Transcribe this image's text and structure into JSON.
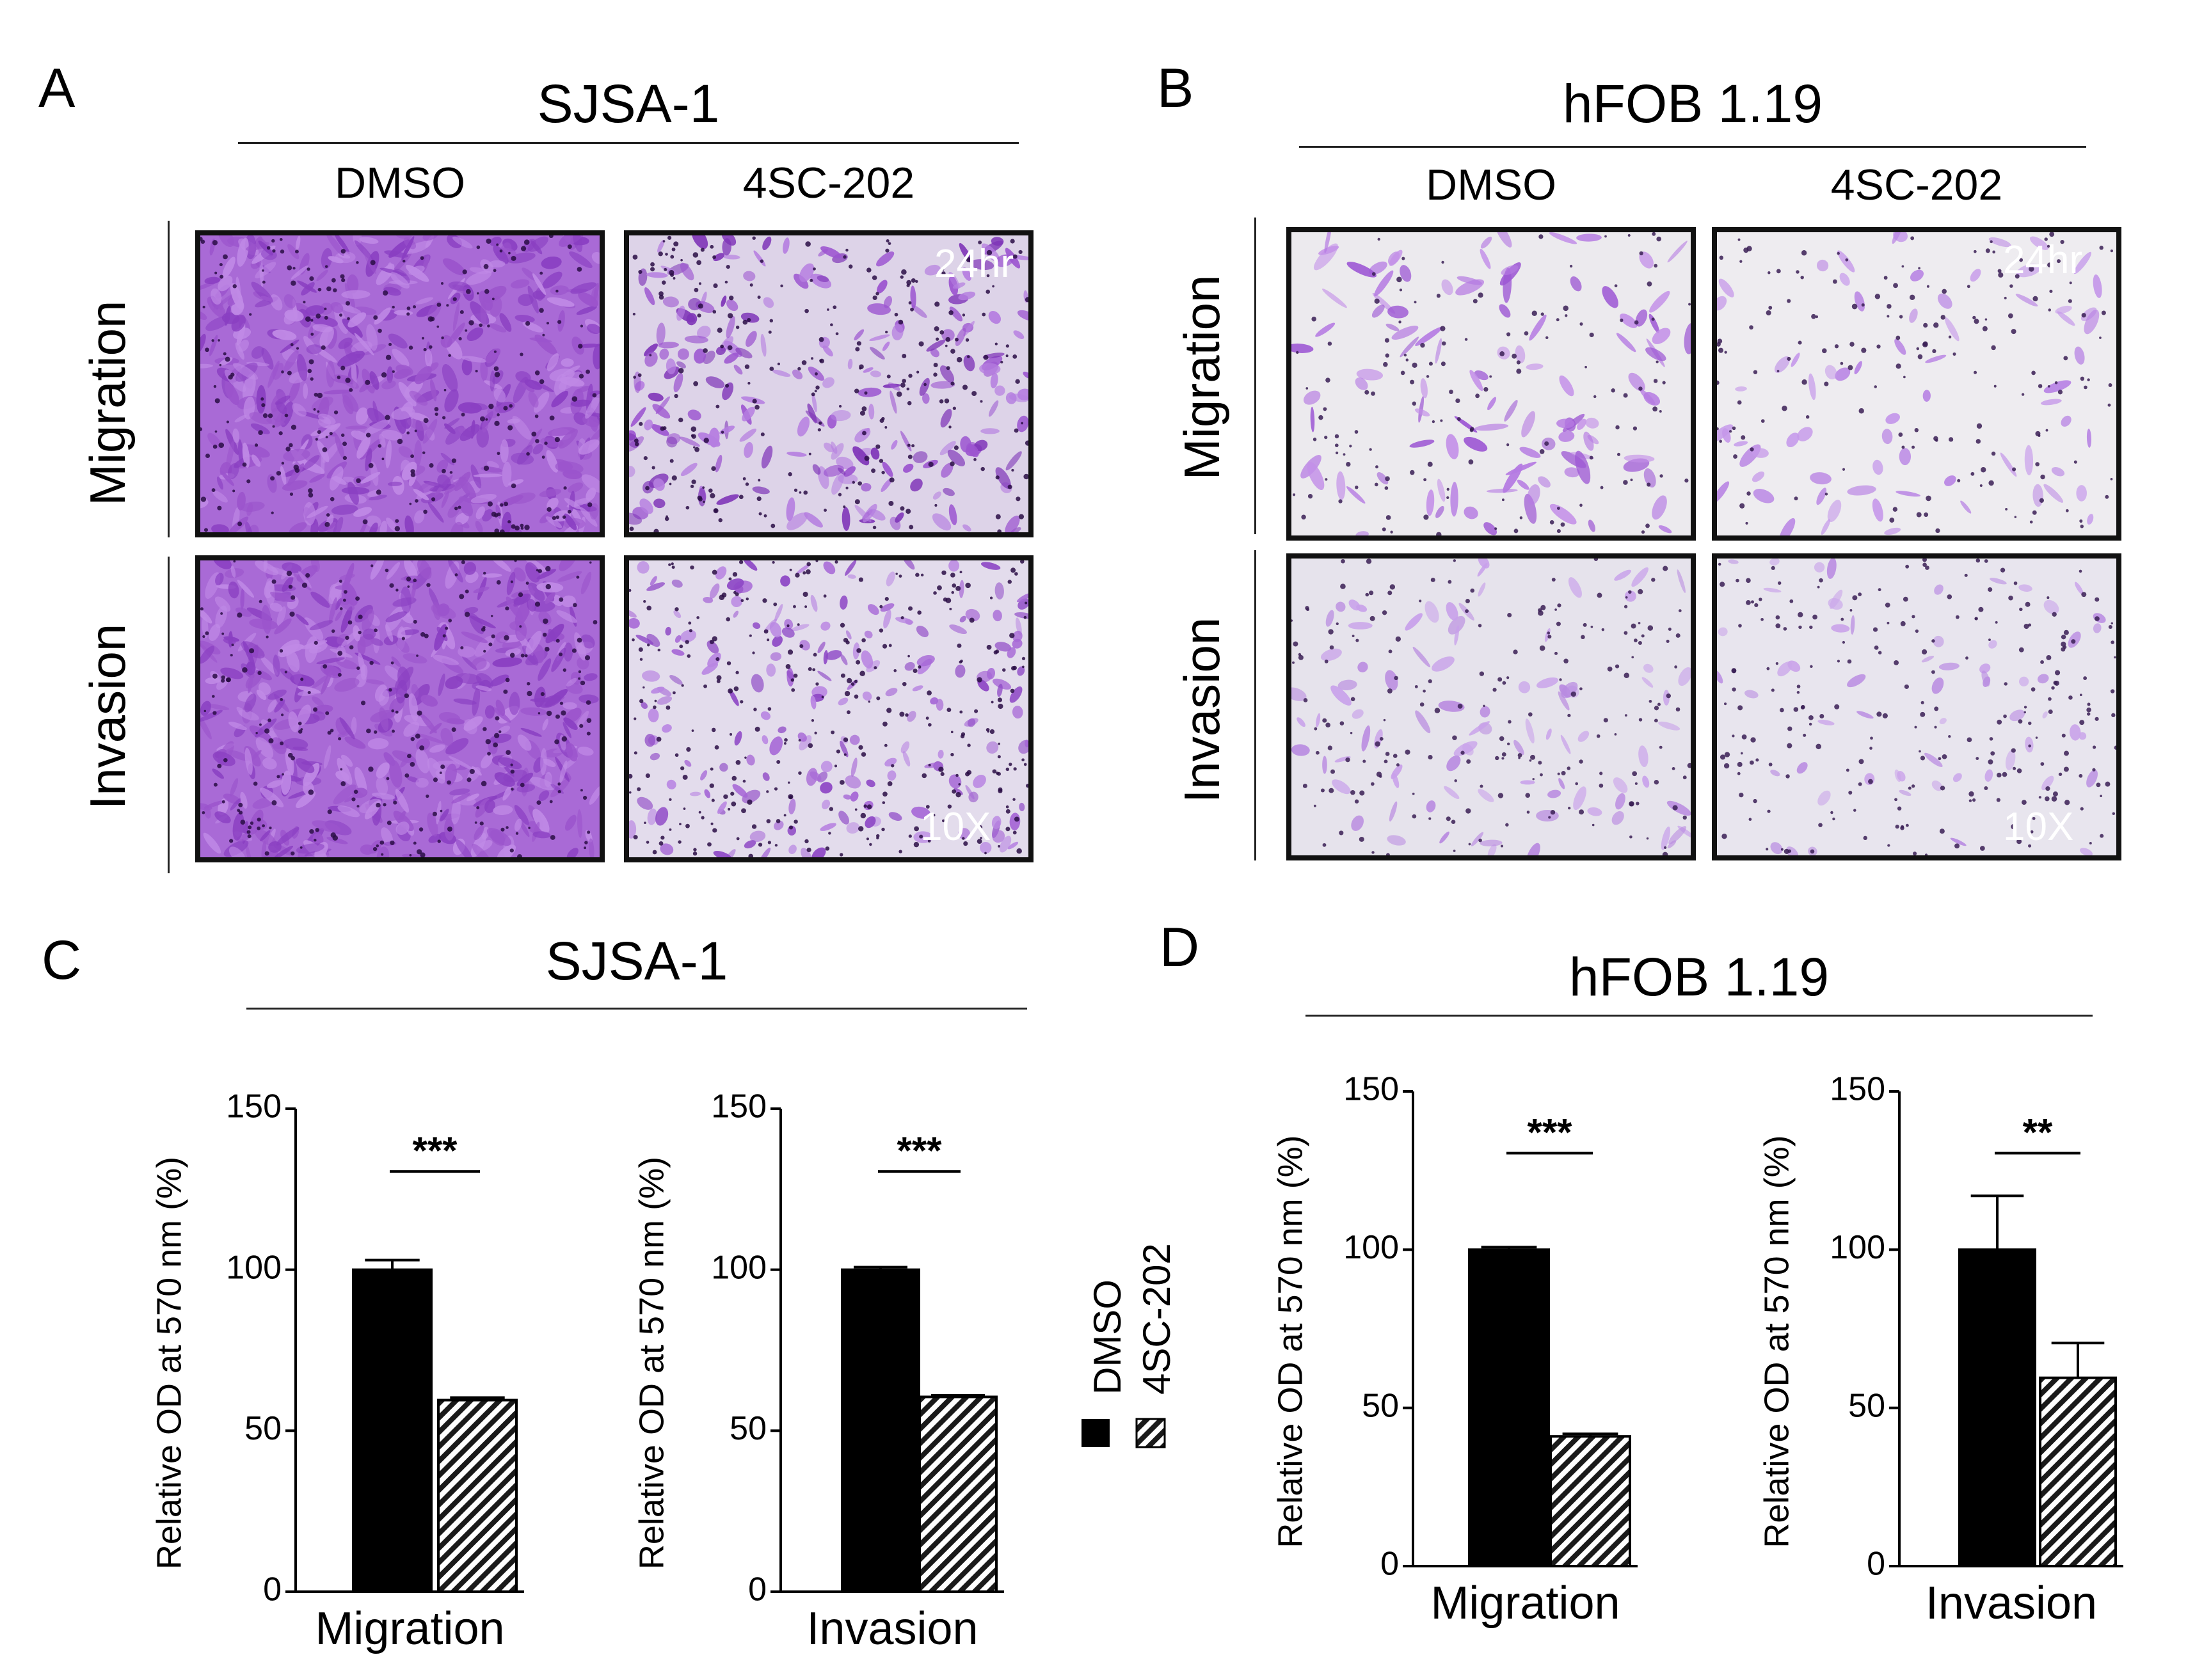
{
  "panels": {
    "A": {
      "letter": "A",
      "title": "SJSA-1",
      "conditions": [
        "DMSO",
        "4SC-202"
      ],
      "rows": [
        "Migration",
        "Invasion"
      ],
      "time_label": "24hr",
      "mag_label": "10X"
    },
    "B": {
      "letter": "B",
      "title": "hFOB 1.19",
      "conditions": [
        "DMSO",
        "4SC-202"
      ],
      "rows": [
        "Migration",
        "Invasion"
      ],
      "time_label": "24hr",
      "mag_label": "10X"
    },
    "C": {
      "letter": "C",
      "title": "SJSA-1"
    },
    "D": {
      "letter": "D",
      "title": "hFOB 1.19"
    }
  },
  "legend": {
    "items": [
      {
        "label": "DMSO",
        "fill": "solid"
      },
      {
        "label": "4SC-202",
        "fill": "hatched"
      }
    ]
  },
  "colors": {
    "stain": "#8b3fc0",
    "stain_light": "#b77be0",
    "background_dense": "#a868d8",
    "background_sparse": "#e9e6ee",
    "bar_dmso": "#000000"
  },
  "chart_data": [
    {
      "type": "bar",
      "panel": "C",
      "categories": [
        "Migration"
      ],
      "series": [
        {
          "name": "DMSO",
          "values": [
            100
          ],
          "error": [
            3
          ]
        },
        {
          "name": "4SC-202",
          "values": [
            59.5
          ],
          "error": [
            0.8
          ]
        }
      ],
      "significance": "***",
      "xlabel": "Migration",
      "ylabel": "Relative OD at 570 nm (%)",
      "ylim": [
        0,
        150
      ],
      "yticks": [
        0,
        50,
        100,
        150
      ]
    },
    {
      "type": "bar",
      "panel": "C",
      "categories": [
        "Invasion"
      ],
      "series": [
        {
          "name": "DMSO",
          "values": [
            100
          ],
          "error": [
            0.8
          ]
        },
        {
          "name": "4SC-202",
          "values": [
            60.5
          ],
          "error": [
            0.5
          ]
        }
      ],
      "significance": "***",
      "xlabel": "Invasion",
      "ylabel": "Relative OD at 570 nm (%)",
      "ylim": [
        0,
        150
      ],
      "yticks": [
        0,
        50,
        100,
        150
      ]
    },
    {
      "type": "bar",
      "panel": "D",
      "categories": [
        "Migration"
      ],
      "series": [
        {
          "name": "DMSO",
          "values": [
            100
          ],
          "error": [
            0.8
          ]
        },
        {
          "name": "4SC-202",
          "values": [
            41
          ],
          "error": [
            0.8
          ]
        }
      ],
      "significance": "***",
      "xlabel": "Migration",
      "ylabel": "Relative OD at 570 nm (%)",
      "ylim": [
        0,
        150
      ],
      "yticks": [
        0,
        50,
        100,
        150
      ]
    },
    {
      "type": "bar",
      "panel": "D",
      "categories": [
        "Invasion"
      ],
      "series": [
        {
          "name": "DMSO",
          "values": [
            100
          ],
          "error": [
            17
          ]
        },
        {
          "name": "4SC-202",
          "values": [
            59.5
          ],
          "error": [
            11
          ]
        }
      ],
      "significance": "**",
      "xlabel": "Invasion",
      "ylabel": "Relative OD at 570 nm (%)",
      "ylim": [
        0,
        150
      ],
      "yticks": [
        0,
        50,
        100,
        150
      ]
    }
  ]
}
